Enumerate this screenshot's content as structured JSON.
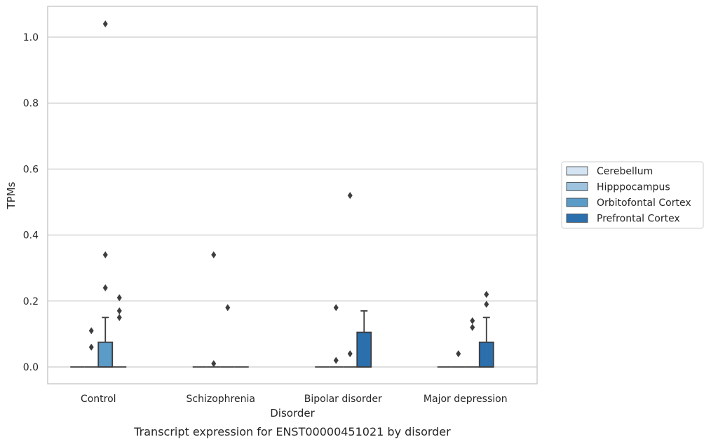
{
  "chart_data": {
    "type": "box",
    "title": "",
    "caption": "Transcript expression for ENST00000451021 by disorder",
    "xlabel": "Disorder",
    "ylabel": "TPMs",
    "ylim": [
      -0.05,
      1.09
    ],
    "yticks": [
      0.0,
      0.2,
      0.4,
      0.6,
      0.8,
      1.0
    ],
    "ytick_labels": [
      "0.0",
      "0.2",
      "0.4",
      "0.6",
      "0.8",
      "1.0"
    ],
    "grid": true,
    "legend_position": "right",
    "categories": [
      "Control",
      "Schizophrenia",
      "Bipolar disorder",
      "Major depression"
    ],
    "series": [
      {
        "name": "Cerebellum",
        "color": "#d4e4f2",
        "boxes": [
          {
            "q1": 0,
            "median": 0,
            "q3": 0,
            "whisker_low": 0,
            "whisker_high": 0,
            "outliers": []
          },
          {
            "q1": 0,
            "median": 0,
            "q3": 0,
            "whisker_low": 0,
            "whisker_high": 0,
            "outliers": []
          },
          {
            "q1": 0,
            "median": 0,
            "q3": 0,
            "whisker_low": 0,
            "whisker_high": 0,
            "outliers": []
          },
          {
            "q1": 0,
            "median": 0,
            "q3": 0,
            "whisker_low": 0,
            "whisker_high": 0,
            "outliers": []
          }
        ]
      },
      {
        "name": "Hipppocampus",
        "color": "#9dc3de",
        "boxes": [
          {
            "q1": 0,
            "median": 0,
            "q3": 0,
            "whisker_low": 0,
            "whisker_high": 0,
            "outliers": [
              0.11,
              0.06
            ]
          },
          {
            "q1": 0,
            "median": 0,
            "q3": 0,
            "whisker_low": 0,
            "whisker_high": 0,
            "outliers": [
              0.01,
              0.34
            ]
          },
          {
            "q1": 0,
            "median": 0,
            "q3": 0,
            "whisker_low": 0,
            "whisker_high": 0,
            "outliers": [
              0.02,
              0.18
            ]
          },
          {
            "q1": 0,
            "median": 0,
            "q3": 0,
            "whisker_low": 0,
            "whisker_high": 0,
            "outliers": [
              0.04
            ]
          }
        ]
      },
      {
        "name": "Orbitofontal Cortex",
        "color": "#5a9bc7",
        "boxes": [
          {
            "q1": 0,
            "median": 0,
            "q3": 0.075,
            "whisker_low": 0,
            "whisker_high": 0.15,
            "outliers": [
              1.04,
              0.34,
              0.24
            ]
          },
          {
            "q1": 0,
            "median": 0,
            "q3": 0,
            "whisker_low": 0,
            "whisker_high": 0,
            "outliers": [
              0.18
            ]
          },
          {
            "q1": 0,
            "median": 0,
            "q3": 0,
            "whisker_low": 0,
            "whisker_high": 0,
            "outliers": [
              0.04,
              0.52
            ]
          },
          {
            "q1": 0,
            "median": 0,
            "q3": 0,
            "whisker_low": 0,
            "whisker_high": 0,
            "outliers": [
              0.14,
              0.12
            ]
          }
        ]
      },
      {
        "name": "Prefrontal Cortex",
        "color": "#2b6fad",
        "boxes": [
          {
            "q1": 0,
            "median": 0,
            "q3": 0,
            "whisker_low": 0,
            "whisker_high": 0,
            "outliers": [
              0.21,
              0.17,
              0.15
            ]
          },
          {
            "q1": 0,
            "median": 0,
            "q3": 0,
            "whisker_low": 0,
            "whisker_high": 0,
            "outliers": []
          },
          {
            "q1": 0,
            "median": 0,
            "q3": 0.105,
            "whisker_low": 0,
            "whisker_high": 0.17,
            "outliers": []
          },
          {
            "q1": 0,
            "median": 0,
            "q3": 0.075,
            "whisker_low": 0,
            "whisker_high": 0.15,
            "outliers": [
              0.22,
              0.19
            ]
          }
        ]
      }
    ]
  }
}
